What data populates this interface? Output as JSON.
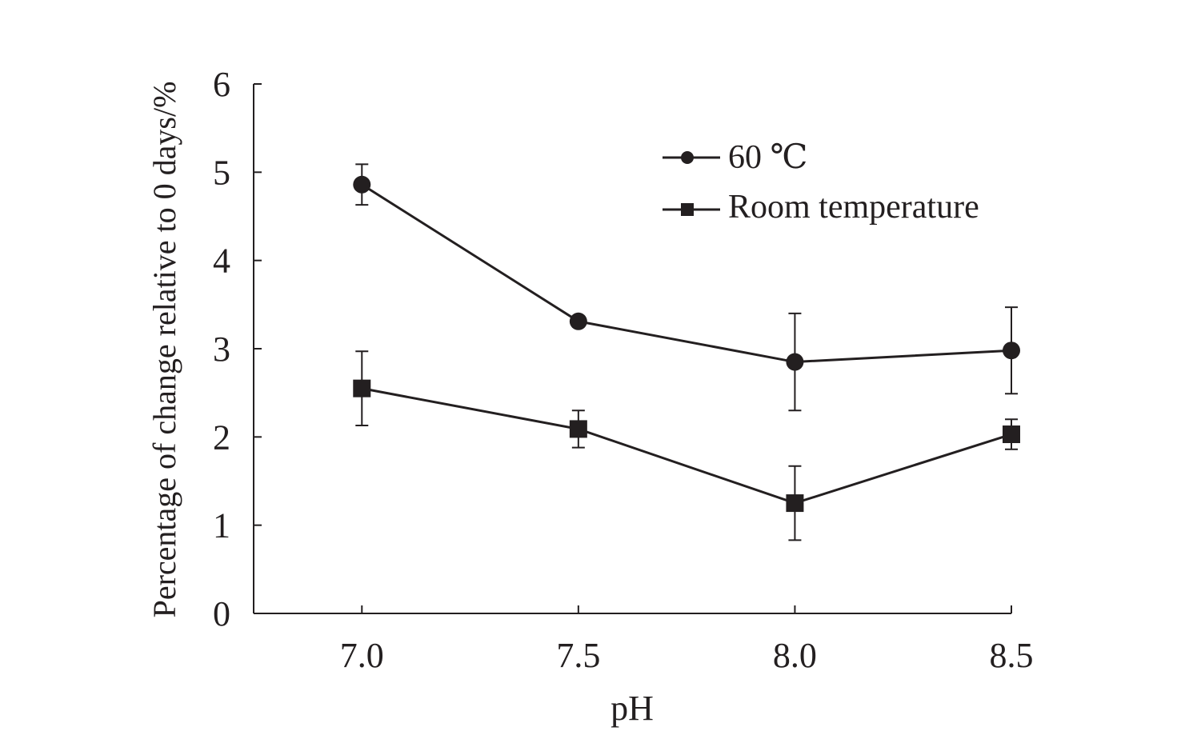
{
  "chart_data": {
    "type": "line",
    "title": "",
    "xlabel": "pH",
    "ylabel": "Percentage of change relative to 0 days/%",
    "categories": [
      "7.0",
      "7.5",
      "8.0",
      "8.5"
    ],
    "x": [
      7.0,
      7.5,
      8.0,
      8.5
    ],
    "xlim": [
      6.75,
      8.5
    ],
    "ylim": [
      0,
      6
    ],
    "yticks": [
      "0",
      "1",
      "2",
      "3",
      "4",
      "5",
      "6"
    ],
    "grid": false,
    "legend_position": "top-right",
    "series": [
      {
        "name": "60 ℃",
        "marker": "circle",
        "values": [
          4.86,
          3.31,
          2.85,
          2.98
        ],
        "errors": [
          0.23,
          0.02,
          0.55,
          0.49
        ]
      },
      {
        "name": "Room temperature",
        "marker": "square",
        "values": [
          2.55,
          2.09,
          1.25,
          2.03
        ],
        "errors": [
          0.42,
          0.21,
          0.42,
          0.17
        ]
      }
    ],
    "colors": {
      "line": "#231f20",
      "background": "#ffffff"
    }
  }
}
